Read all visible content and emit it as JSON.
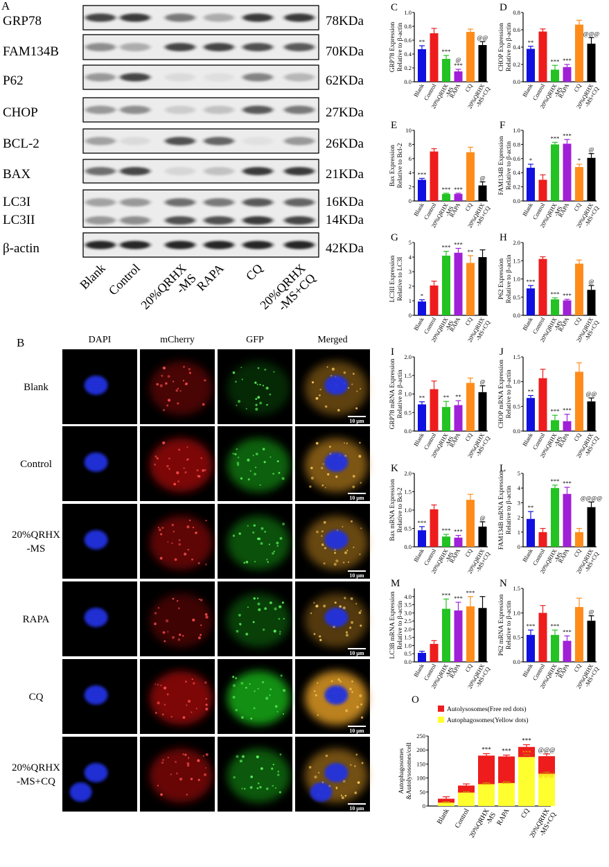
{
  "panel_letters": [
    "A",
    "B",
    "C",
    "D",
    "E",
    "F",
    "G",
    "H",
    "I",
    "J",
    "K",
    "L",
    "M",
    "N",
    "O"
  ],
  "groups": [
    "Blank",
    "Control",
    "20%QRHX-MS",
    "RAPA",
    "CQ",
    "20%QRHX-MS+CQ"
  ],
  "group_axis_labels": [
    [
      "Blank"
    ],
    [
      "Control"
    ],
    [
      "20%QRHX",
      "-MS"
    ],
    [
      "RAPA"
    ],
    [
      "CQ"
    ],
    [
      "20%QRHX",
      "-MS+CQ"
    ]
  ],
  "bar_colors": [
    "#1010e0",
    "#ee1c1c",
    "#22c322",
    "#a020d8",
    "#ff8c1a",
    "#000000"
  ],
  "western_blot": {
    "proteins": [
      "GRP78",
      "FAM134B",
      "P62",
      "CHOP",
      "BCL-2",
      "BAX",
      "LC3I",
      "LC3II",
      "β-actin"
    ],
    "sizes": [
      "78KDa",
      "70KDa",
      "62KDa",
      "27KDa",
      "26KDa",
      "21KDa",
      "16KDa",
      "14KDa",
      "42KDa"
    ],
    "lane_labels": [
      [
        "Blank"
      ],
      [
        "Control"
      ],
      [
        "20%QRHX",
        "-MS"
      ],
      [
        "RAPA"
      ],
      [
        "CQ"
      ],
      [
        "20%QRHX",
        "-MS+CQ"
      ]
    ]
  },
  "microscopy": {
    "columns": [
      "DAPI",
      "mCherry",
      "GFP",
      "Merged"
    ],
    "rows": [
      [
        "Blank"
      ],
      [
        "Control"
      ],
      [
        "20%QRHX",
        "-MS"
      ],
      [
        "RAPA"
      ],
      [
        "CQ"
      ],
      [
        "20%QRHX",
        "-MS+CQ"
      ]
    ],
    "scale_bar": "10 μm"
  },
  "chart_data": [
    {
      "panel": "C",
      "type": "bar",
      "ylabel": [
        "GRP78  Expression",
        "Relative to β-actin"
      ],
      "ylim": [
        0,
        1.0
      ],
      "yticks": [
        "0.0",
        "0.2",
        "0.4",
        "0.6",
        "0.8",
        "1.0"
      ],
      "values": [
        0.47,
        0.7,
        0.33,
        0.15,
        0.72,
        0.53
      ],
      "errors": [
        0.05,
        0.07,
        0.05,
        0.03,
        0.04,
        0.05
      ],
      "annotations": [
        "**",
        "",
        "***",
        "@ ***",
        "",
        "@@"
      ]
    },
    {
      "panel": "D",
      "type": "bar",
      "ylabel": [
        "CHOP  Expression",
        "Relative to β-actin"
      ],
      "ylim": [
        0,
        0.8
      ],
      "yticks": [
        "0.0",
        "0.2",
        "0.4",
        "0.6",
        "0.8"
      ],
      "values": [
        0.38,
        0.58,
        0.14,
        0.17,
        0.66,
        0.44
      ],
      "errors": [
        0.03,
        0.03,
        0.05,
        0.03,
        0.05,
        0.07
      ],
      "annotations": [
        "**",
        "",
        "***",
        "***",
        "",
        "@@@"
      ]
    },
    {
      "panel": "E",
      "type": "bar",
      "ylabel": [
        "Bax  Expression",
        "Relative to Bcl-2"
      ],
      "ylim": [
        0,
        10
      ],
      "yticks": [
        "0",
        "2",
        "4",
        "6",
        "8",
        "10"
      ],
      "values": [
        3.0,
        7.0,
        1.0,
        1.0,
        6.9,
        2.2
      ],
      "errors": [
        0.2,
        0.4,
        0.1,
        0.1,
        0.7,
        0.5
      ],
      "annotations": [
        "***",
        "",
        "***",
        "***",
        "",
        "@"
      ]
    },
    {
      "panel": "F",
      "type": "bar",
      "ylabel": [
        "FAM134B  Expression",
        "Relative to β-actin"
      ],
      "ylim": [
        0,
        1.0
      ],
      "yticks": [
        "0.0",
        "0.2",
        "0.4",
        "0.6",
        "0.8",
        "1.0"
      ],
      "values": [
        0.47,
        0.3,
        0.8,
        0.81,
        0.48,
        0.61
      ],
      "errors": [
        0.05,
        0.07,
        0.03,
        0.06,
        0.04,
        0.06
      ],
      "annotations": [
        "*",
        "",
        "***",
        "***",
        "*",
        "@"
      ]
    },
    {
      "panel": "G",
      "type": "bar",
      "ylabel": [
        "LC3II  Expression",
        "Relative to LC3I"
      ],
      "ylim": [
        0,
        5
      ],
      "yticks": [
        "0",
        "1",
        "2",
        "3",
        "4",
        "5"
      ],
      "values": [
        0.95,
        2.05,
        4.1,
        4.3,
        3.6,
        4.0
      ],
      "errors": [
        0.12,
        0.3,
        0.3,
        0.3,
        0.5,
        0.5
      ],
      "annotations": [
        "*",
        "",
        "***",
        "***",
        "**",
        ""
      ]
    },
    {
      "panel": "H",
      "type": "bar",
      "ylabel": [
        "P62  Expression",
        "Relative to β-actin"
      ],
      "ylim": [
        0,
        2.0
      ],
      "yticks": [
        "0.0",
        "0.5",
        "1.0",
        "1.5",
        "2.0"
      ],
      "values": [
        0.74,
        1.55,
        0.44,
        0.41,
        1.42,
        0.7
      ],
      "errors": [
        0.08,
        0.06,
        0.04,
        0.03,
        0.1,
        0.12
      ],
      "annotations": [
        "***",
        "",
        "***",
        "***",
        "",
        "@"
      ]
    },
    {
      "panel": "I",
      "type": "bar",
      "ylabel": [
        "GRP78 mRNA  Expression",
        "Relative to β-actin"
      ],
      "ylim": [
        0,
        2.0
      ],
      "yticks": [
        "0.0",
        "0.5",
        "1.0",
        "1.5",
        "2.0"
      ],
      "values": [
        0.72,
        1.13,
        0.65,
        0.7,
        1.3,
        1.05
      ],
      "errors": [
        0.07,
        0.22,
        0.15,
        0.12,
        0.13,
        0.17
      ],
      "annotations": [
        "**",
        "",
        "**",
        "**",
        "",
        "@"
      ]
    },
    {
      "panel": "J",
      "type": "bar",
      "ylabel": [
        "CHOP mRNA  Expression",
        "Relative to β-actin"
      ],
      "ylim": [
        0,
        1.5
      ],
      "yticks": [
        "0.0",
        "0.5",
        "1.0",
        "1.5"
      ],
      "values": [
        0.67,
        1.07,
        0.22,
        0.2,
        1.2,
        0.6
      ],
      "errors": [
        0.05,
        0.18,
        0.1,
        0.14,
        0.18,
        0.07
      ],
      "annotations": [
        "**",
        "",
        "***",
        "***",
        "",
        "@@"
      ]
    },
    {
      "panel": "K",
      "type": "bar",
      "ylabel": [
        "Bax mRNA  Expression",
        "Relative to Bcl-2"
      ],
      "ylim": [
        0,
        2.0
      ],
      "yticks": [
        "0.0",
        "0.5",
        "1.0",
        "1.5",
        "2.0"
      ],
      "values": [
        0.45,
        1.02,
        0.28,
        0.25,
        1.28,
        0.55
      ],
      "errors": [
        0.1,
        0.12,
        0.06,
        0.06,
        0.15,
        0.13
      ],
      "annotations": [
        "***",
        "",
        "***",
        "***",
        "",
        "@"
      ]
    },
    {
      "panel": "L",
      "type": "bar",
      "ylabel": [
        "FAM134B mRNA  Expression",
        "Relative to β-actin"
      ],
      "ylim": [
        0,
        5
      ],
      "yticks": [
        "0",
        "1",
        "2",
        "3",
        "4",
        "5"
      ],
      "values": [
        1.9,
        1.0,
        4.0,
        3.6,
        1.0,
        2.7
      ],
      "errors": [
        0.5,
        0.25,
        0.2,
        0.45,
        0.25,
        0.35
      ],
      "annotations": [
        "**",
        "",
        "***",
        "***",
        "",
        "@@@@"
      ]
    },
    {
      "panel": "M",
      "type": "bar",
      "ylabel": [
        "LC3B mRNA  Expression",
        "Relative to β-actin"
      ],
      "ylim": [
        0,
        4.5
      ],
      "yticks": [
        "0.0",
        "0.5",
        "1.0",
        "1.5",
        "2.0",
        "2.5",
        "3.0",
        "3.5",
        "4.0"
      ],
      "values": [
        0.55,
        1.1,
        3.25,
        3.15,
        3.4,
        3.3
      ],
      "errors": [
        0.1,
        0.2,
        0.6,
        0.5,
        0.6,
        0.7
      ],
      "annotations": [
        "",
        "",
        "***",
        "***",
        "***",
        ""
      ]
    },
    {
      "panel": "N",
      "type": "bar",
      "ylabel": [
        "P62 mRNA  Expression",
        "Relative to β-actin"
      ],
      "ylim": [
        0,
        1.5
      ],
      "yticks": [
        "0.0",
        "0.5",
        "1.0",
        "1.5"
      ],
      "values": [
        0.55,
        1.0,
        0.55,
        0.43,
        1.12,
        0.84
      ],
      "errors": [
        0.1,
        0.15,
        0.1,
        0.1,
        0.18,
        0.1
      ],
      "annotations": [
        "***",
        "",
        "***",
        "***",
        "",
        "@"
      ]
    },
    {
      "panel": "O",
      "type": "bar",
      "stacked": true,
      "ylabel": [
        "Autophagosomes",
        "&Autolysosomes/cell"
      ],
      "ylim": [
        0,
        250
      ],
      "yticks": [
        "0",
        "50",
        "100",
        "150",
        "200",
        "250"
      ],
      "legend": [
        "Autolysosomes(Free red dots)",
        "Autophagosomes(Yellow dots)"
      ],
      "legend_position": "top",
      "series": [
        {
          "name": "Autophagosomes(Yellow dots)",
          "color": "#ffff30",
          "values": [
            12,
            48,
            78,
            82,
            175,
            115
          ],
          "errors": [
            3,
            3,
            5,
            5,
            8,
            6
          ]
        },
        {
          "name": "Autolysosomes(Free red dots)",
          "color": "#ee1c1c",
          "values": [
            14,
            25,
            102,
            95,
            36,
            63
          ],
          "errors": [
            7,
            6,
            7,
            5,
            8,
            8
          ]
        }
      ],
      "annotations": [
        "",
        "",
        "***",
        "***",
        "***",
        "@@@"
      ],
      "inner_annotations": [
        "***",
        "",
        "***",
        "***",
        "***",
        "@@@"
      ]
    }
  ]
}
